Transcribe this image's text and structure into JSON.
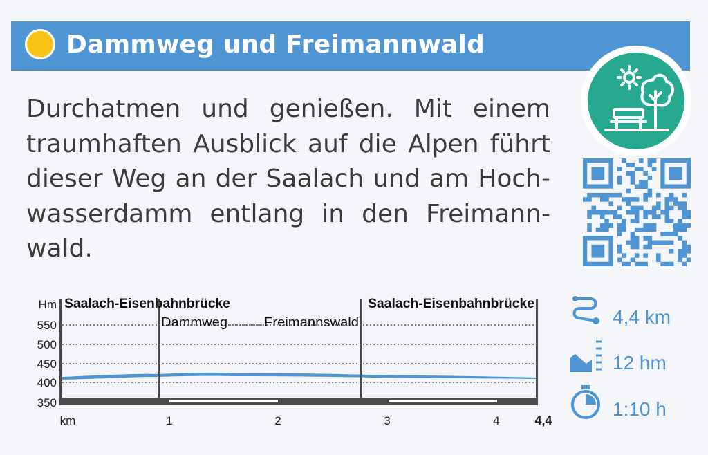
{
  "header": {
    "title": "Dammweg und Freimannwald",
    "accent_color": "#4f95d3",
    "sun_color": "#f9c416",
    "badge_color": "#26a98f",
    "badge_icon": "park-bench-tree-sun-icon"
  },
  "description": "Durchatmen und genießen. Mit einem traumhaften Ausblick auf die Alpen führt dieser Weg an der Saalach und am Hoch­wasserdamm entlang in den Freimann­wald.",
  "qr_icon": "qr-code-icon",
  "profile": {
    "y_unit": "Hm",
    "x_unit": "km",
    "y_ticks": [
      "550",
      "500",
      "450",
      "400",
      "350"
    ],
    "x_ticks": [
      "1",
      "2",
      "3",
      "4"
    ],
    "x_end": "4,4",
    "waypoints": {
      "start": "Saalach-Eisenbahnbrücke",
      "end": "Saalach-Eisenbahnbrücke",
      "mid_a": "Dammweg",
      "mid_b": "Freimannswald"
    }
  },
  "stats": {
    "distance": "4,4 km",
    "elevation": "12 hm",
    "duration": "1:10 h"
  }
}
